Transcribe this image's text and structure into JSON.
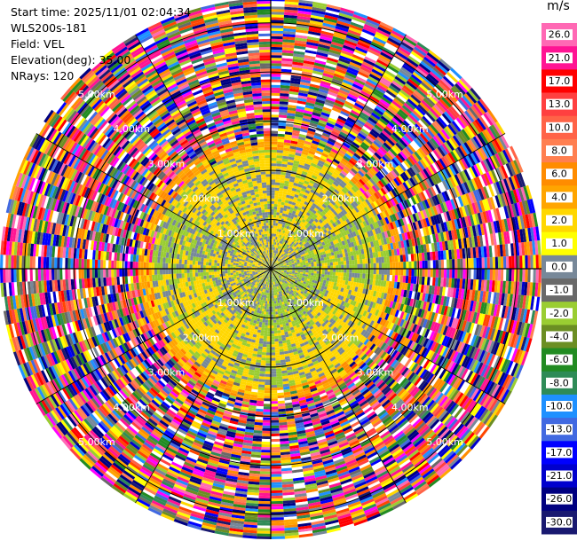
{
  "meta": {
    "start_time": "Start time: 2025/11/01 02:04:34",
    "instrument": "WLS200s-181",
    "field": "Field: VEL",
    "elevation": "Elevation(deg): 35.00",
    "nrays": "NRays: 120"
  },
  "chart_data": {
    "type": "heatmap",
    "projection": "polar",
    "title": "",
    "field": "VEL",
    "units": "m/s",
    "nrays": 120,
    "elevation_deg": 35.0,
    "max_range_km": 5.5,
    "range_rings": [
      {
        "range_km": 1.0,
        "label": "1.00km"
      },
      {
        "range_km": 2.0,
        "label": "2.00km"
      },
      {
        "range_km": 3.0,
        "label": "3.00km"
      },
      {
        "range_km": 4.0,
        "label": "4.00km"
      },
      {
        "range_km": 5.0,
        "label": "5.00km"
      }
    ],
    "ring_label_bearings_deg": [
      45,
      135,
      225,
      315
    ],
    "spokes_deg": [
      0,
      30,
      60,
      90,
      120,
      150,
      180,
      210,
      240,
      270,
      300,
      330
    ],
    "colorbar": {
      "label": "m/s",
      "ticks": [
        "26.0",
        "21.0",
        "17.0",
        "13.0",
        "10.0",
        "8.0",
        "6.0",
        "4.0",
        "2.0",
        "1.0",
        "0.0",
        "-1.0",
        "-2.0",
        "-4.0",
        "-6.0",
        "-8.0",
        "-10.0",
        "-13.0",
        "-17.0",
        "-21.0",
        "-26.0",
        "-30.0"
      ],
      "colors": [
        "#ff69b4",
        "#ff1493",
        "#ff0000",
        "#ff4040",
        "#ff6347",
        "#ff7f50",
        "#ff8c00",
        "#ffa500",
        "#ffd700",
        "#ffff00",
        "#778899",
        "#696969",
        "#9acd32",
        "#6b8e23",
        "#228b22",
        "#2e8b57",
        "#1e90ff",
        "#4169e1",
        "#0000ff",
        "#0000cd",
        "#000080",
        "#191970"
      ]
    },
    "regions": [
      {
        "range_km": [
          0.0,
          1.2
        ],
        "pattern": "mixed",
        "description_values": [
          -2.0,
          1.0,
          0.0
        ]
      },
      {
        "range_km": [
          1.2,
          2.4
        ],
        "pattern": "yellow-green-gray",
        "description_values": [
          2.0,
          -2.0,
          0.0
        ]
      },
      {
        "range_km": [
          2.4,
          2.7
        ],
        "pattern": "orange-transition",
        "description_values": [
          4.0,
          6.0
        ]
      },
      {
        "range_km": [
          2.7,
          5.5
        ],
        "pattern": "noise",
        "description_values": "random"
      }
    ]
  }
}
